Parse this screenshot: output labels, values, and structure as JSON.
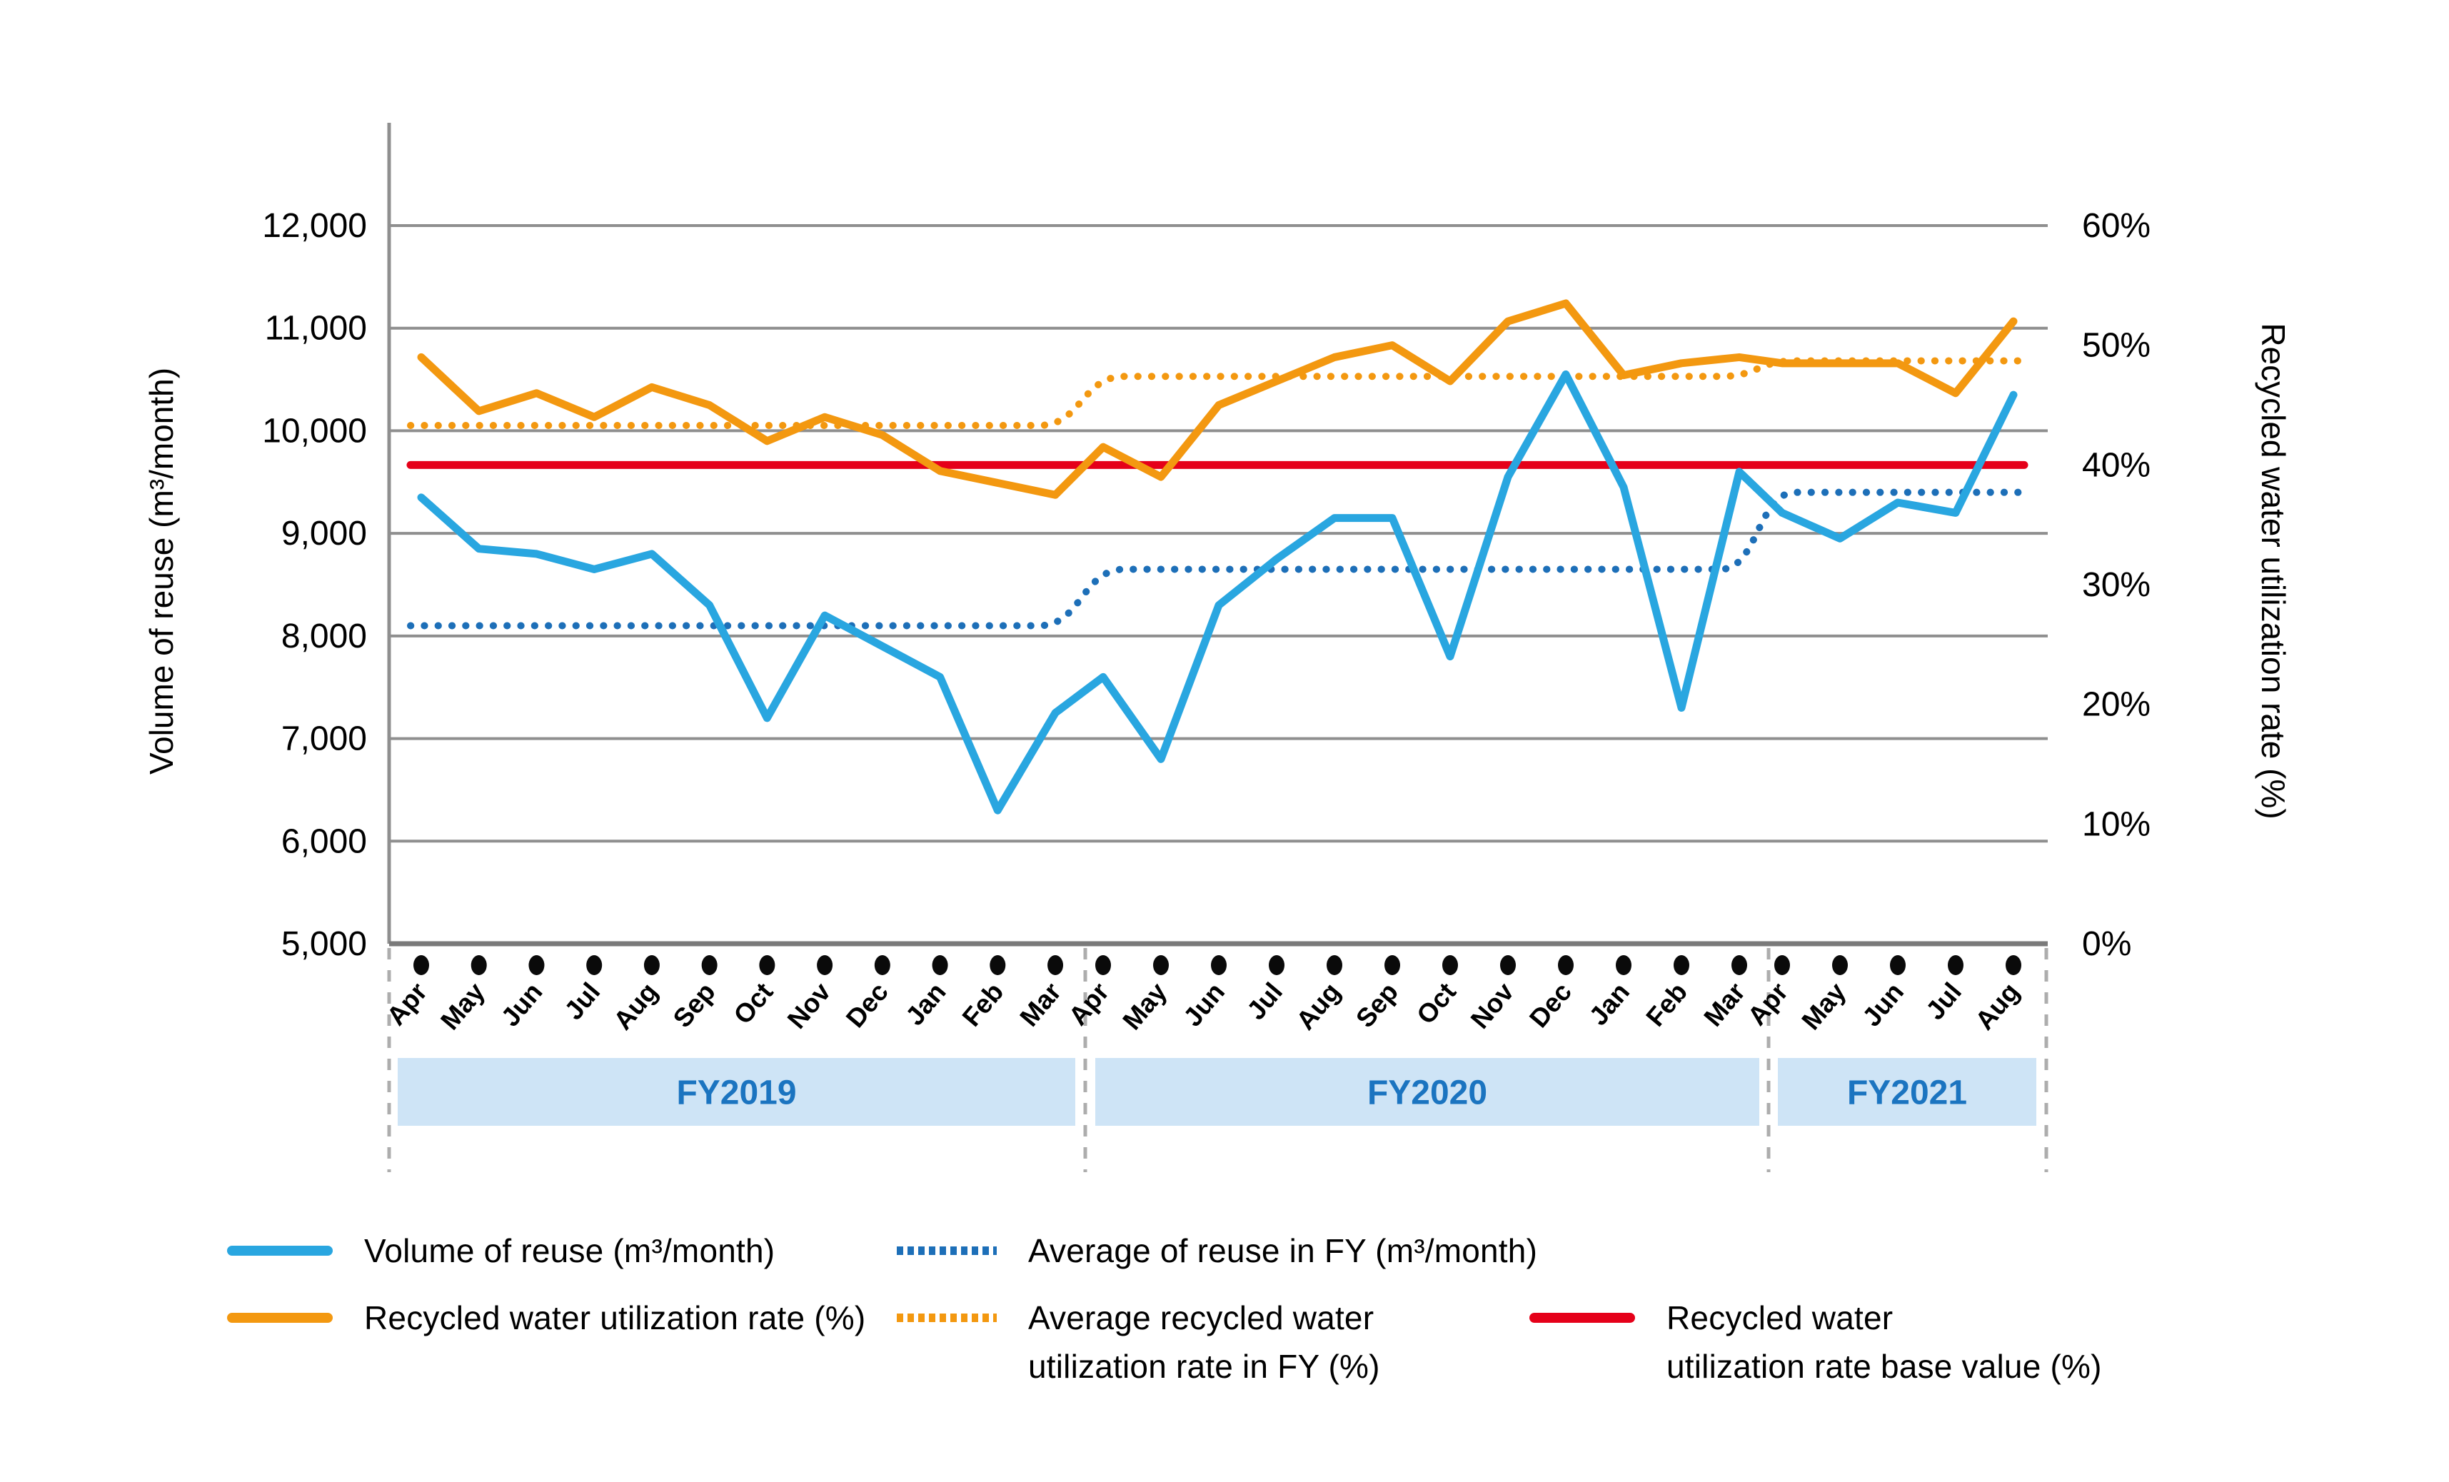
{
  "chart_data": {
    "type": "line",
    "title": "",
    "left_axis": {
      "label": "Volume of reuse (m³/month)",
      "min": 5000,
      "max": 12000,
      "tick_step": 1000,
      "ticks": [
        "5,000",
        "6,000",
        "7,000",
        "8,000",
        "9,000",
        "10,000",
        "11,000",
        "12,000"
      ]
    },
    "right_axis": {
      "label": "Recycled water utilization rate (%)",
      "min": 0,
      "max": 60,
      "tick_step": 10,
      "ticks": [
        "0%",
        "10%",
        "20%",
        "30%",
        "40%",
        "50%",
        "60%"
      ]
    },
    "grid": true,
    "x_groups": [
      {
        "fy_label": "FY2019",
        "months": [
          "Apr",
          "May",
          "Jun",
          "Jul",
          "Aug",
          "Sep",
          "Oct",
          "Nov",
          "Dec",
          "Jan",
          "Feb",
          "Mar"
        ]
      },
      {
        "fy_label": "FY2020",
        "months": [
          "Apr",
          "May",
          "Jun",
          "Jul",
          "Aug",
          "Sep",
          "Oct",
          "Nov",
          "Dec",
          "Jan",
          "Feb",
          "Mar"
        ]
      },
      {
        "fy_label": "FY2021",
        "months": [
          "Apr",
          "May",
          "Jun",
          "Jul",
          "Aug"
        ]
      }
    ],
    "series": [
      {
        "name": "Volume of reuse (m³/month)",
        "axis": "left",
        "style": "solid",
        "color": "#29A6E0",
        "values": [
          9350,
          8850,
          8800,
          8650,
          8800,
          8300,
          7200,
          8200,
          7900,
          7600,
          6300,
          7250,
          7600,
          6800,
          8300,
          8750,
          9150,
          9150,
          7800,
          9550,
          10550,
          9450,
          7300,
          9600,
          9200,
          8950,
          9300,
          9200,
          10350
        ]
      },
      {
        "name": "Recycled water utilization rate (%)",
        "axis": "right",
        "style": "solid",
        "color": "#F39810",
        "values": [
          49,
          44.5,
          46,
          44,
          46.5,
          45,
          42,
          44,
          42.5,
          39.5,
          38.5,
          37.5,
          41.5,
          39,
          45,
          47,
          49,
          50,
          47,
          52,
          53.5,
          47.5,
          48.5,
          49,
          48.5,
          48.5,
          48.5,
          46,
          52
        ]
      },
      {
        "name": "Average of reuse in FY (m³/month)",
        "axis": "left",
        "style": "dotted",
        "color": "#1D6FB8",
        "values_per_fy": [
          8100,
          8650,
          9400
        ]
      },
      {
        "name": "Average recycled water utilization rate in FY (%)",
        "axis": "right",
        "style": "dotted",
        "color": "#F39810",
        "values_per_fy": [
          43.3,
          47.4,
          48.7
        ]
      },
      {
        "name": "Recycled water utilization rate base value (%)",
        "axis": "right",
        "style": "solid",
        "color": "#E50019",
        "base_value": 40
      }
    ],
    "legend": [
      {
        "label": "Volume of reuse (m³/month)",
        "color": "#29A6E0",
        "style": "solid"
      },
      {
        "label": "Average of reuse in FY (m³/month)",
        "color": "#1D6FB8",
        "style": "dotted"
      },
      {
        "label": "Recycled water utilization rate (%)",
        "color": "#F39810",
        "style": "solid"
      },
      {
        "label": "Average recycled water\nutilization rate in FY (%)",
        "color": "#F39810",
        "style": "dotted"
      },
      {
        "label": "Recycled water\nutilization rate base value (%)",
        "color": "#E50019",
        "style": "solid"
      }
    ],
    "colors": {
      "gridline": "#8F8F8F",
      "axis_line": "#7A7A7A",
      "fy_band_fill": "#CEE4F6",
      "fy_band_text": "#1B74C0",
      "separator": "#ADADAD",
      "month_dot": "#0A0A0A",
      "text": "#000000"
    }
  }
}
